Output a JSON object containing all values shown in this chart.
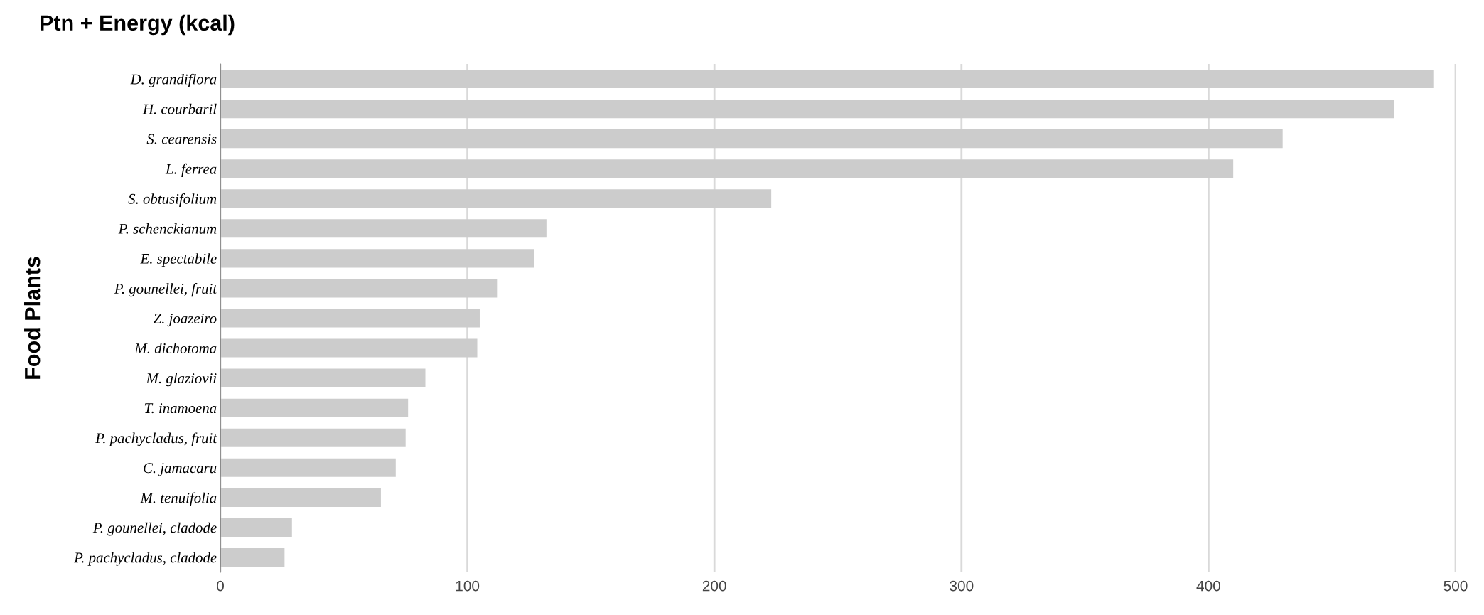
{
  "chart_data": {
    "type": "bar",
    "orientation": "horizontal",
    "title": "Ptn + Energy (kcal)",
    "ylabel": "Food Plants",
    "categories": [
      "D. grandiflora",
      "H. courbaril",
      "S. cearensis",
      "L. ferrea",
      "S. obtusifolium",
      "P. schenckianum",
      "E. spectabile",
      "P. gounellei, fruit",
      "Z. joazeiro",
      "M. dichotoma",
      "M. glaziovii",
      "T. inamoena",
      "P. pachycladus, fruit",
      "C. jamacaru",
      "M. tenuifolia",
      "P. gounellei, cladode",
      "P. pachycladus, cladode"
    ],
    "values": [
      491,
      475,
      430,
      410,
      223,
      132,
      127,
      112,
      105,
      104,
      83,
      76,
      75,
      71,
      65,
      29,
      26
    ],
    "color": "#cccccc",
    "xlim": [
      0,
      500
    ],
    "xticks": [
      0,
      100,
      200,
      300,
      400,
      500
    ],
    "grid": "x"
  }
}
